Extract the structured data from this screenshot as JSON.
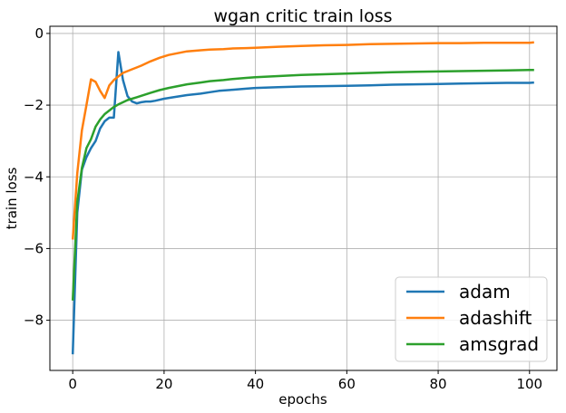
{
  "chart_data": {
    "type": "line",
    "title": "wgan critic train loss",
    "xlabel": "epochs",
    "ylabel": "train loss",
    "xlim": [
      -5,
      106
    ],
    "ylim": [
      -9.4,
      0.2
    ],
    "xticks": [
      0,
      20,
      40,
      60,
      80,
      100
    ],
    "yticks": [
      -8,
      -6,
      -4,
      -2,
      0
    ],
    "xtick_labels": [
      "0",
      "20",
      "40",
      "60",
      "80",
      "100"
    ],
    "ytick_labels": [
      "−8",
      "−6",
      "−4",
      "−2",
      "0"
    ],
    "grid": true,
    "legend_position": "lower-right",
    "series": [
      {
        "name": "adam",
        "color": "#1f77b4",
        "x": [
          0,
          1,
          2,
          3,
          4,
          5,
          6,
          7,
          8,
          9,
          10,
          11,
          12,
          13,
          14,
          15,
          16,
          17,
          18,
          20,
          22,
          25,
          28,
          30,
          32,
          35,
          38,
          40,
          45,
          50,
          55,
          60,
          65,
          70,
          75,
          80,
          85,
          90,
          95,
          100,
          101
        ],
        "y": [
          -8.95,
          -5.0,
          -3.8,
          -3.45,
          -3.2,
          -3.0,
          -2.65,
          -2.45,
          -2.35,
          -2.35,
          -0.52,
          -1.3,
          -1.75,
          -1.9,
          -1.95,
          -1.92,
          -1.9,
          -1.9,
          -1.88,
          -1.82,
          -1.78,
          -1.72,
          -1.68,
          -1.64,
          -1.6,
          -1.57,
          -1.54,
          -1.52,
          -1.5,
          -1.48,
          -1.47,
          -1.46,
          -1.45,
          -1.43,
          -1.42,
          -1.41,
          -1.4,
          -1.39,
          -1.38,
          -1.38,
          -1.37
        ]
      },
      {
        "name": "adashift",
        "color": "#ff7f0e",
        "x": [
          0,
          1,
          2,
          3,
          4,
          5,
          6,
          7,
          8,
          9,
          10,
          11,
          12,
          13,
          14,
          15,
          17,
          19,
          21,
          23,
          25,
          28,
          30,
          33,
          35,
          38,
          40,
          45,
          50,
          55,
          60,
          65,
          70,
          75,
          80,
          85,
          90,
          95,
          100,
          101
        ],
        "y": [
          -5.75,
          -3.9,
          -2.7,
          -2.0,
          -1.28,
          -1.35,
          -1.6,
          -1.8,
          -1.45,
          -1.3,
          -1.2,
          -1.1,
          -1.05,
          -1.0,
          -0.95,
          -0.9,
          -0.78,
          -0.68,
          -0.6,
          -0.55,
          -0.5,
          -0.47,
          -0.45,
          -0.44,
          -0.42,
          -0.41,
          -0.4,
          -0.37,
          -0.35,
          -0.33,
          -0.32,
          -0.3,
          -0.29,
          -0.28,
          -0.27,
          -0.27,
          -0.26,
          -0.26,
          -0.26,
          -0.25
        ]
      },
      {
        "name": "amsgrad",
        "color": "#2ca02c",
        "x": [
          0,
          1,
          2,
          3,
          4,
          5,
          6,
          7,
          8,
          9,
          10,
          11,
          12,
          13,
          14,
          15,
          17,
          19,
          21,
          23,
          25,
          28,
          30,
          33,
          35,
          38,
          40,
          45,
          50,
          55,
          60,
          65,
          70,
          75,
          80,
          85,
          90,
          95,
          100,
          101
        ],
        "y": [
          -7.45,
          -4.7,
          -3.75,
          -3.2,
          -2.95,
          -2.6,
          -2.4,
          -2.25,
          -2.15,
          -2.05,
          -1.98,
          -1.92,
          -1.86,
          -1.82,
          -1.78,
          -1.74,
          -1.66,
          -1.58,
          -1.52,
          -1.47,
          -1.42,
          -1.37,
          -1.33,
          -1.3,
          -1.27,
          -1.24,
          -1.22,
          -1.19,
          -1.16,
          -1.14,
          -1.12,
          -1.1,
          -1.08,
          -1.07,
          -1.06,
          -1.05,
          -1.04,
          -1.03,
          -1.02,
          -1.02
        ]
      }
    ]
  }
}
